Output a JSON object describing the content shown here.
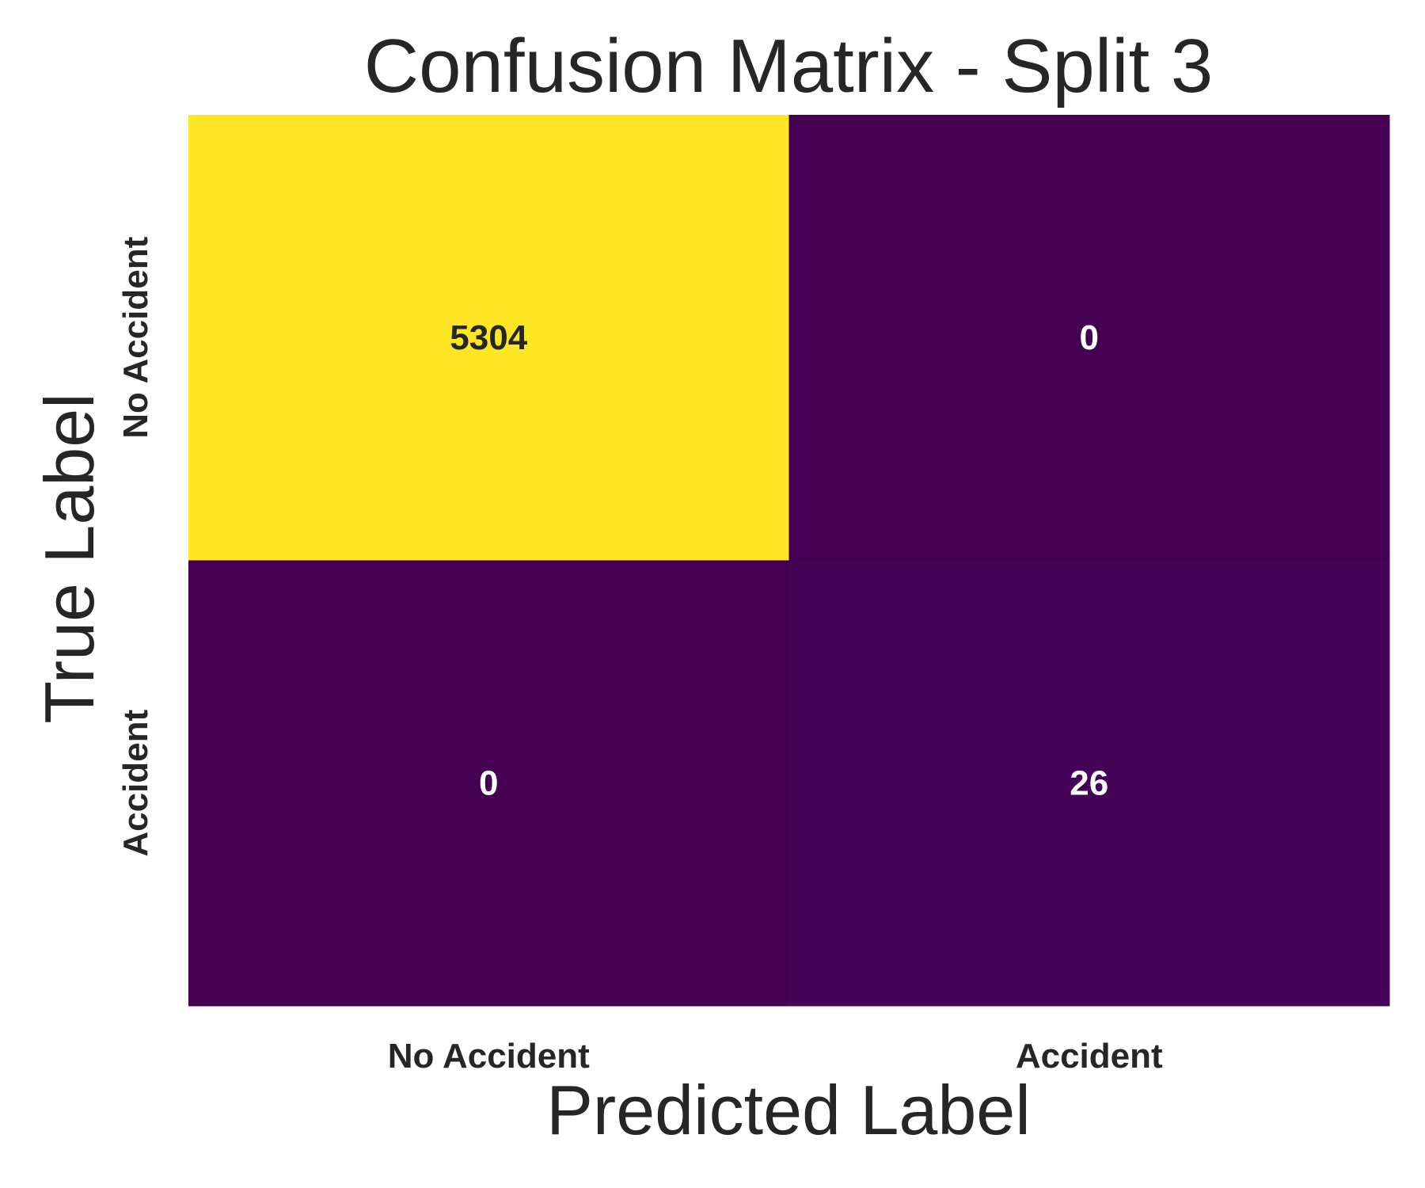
{
  "chart_data": {
    "type": "heatmap",
    "title": "Confusion Matrix - Split 3",
    "xlabel": "Predicted Label",
    "ylabel": "True Label",
    "x_categories": [
      "No Accident",
      "Accident"
    ],
    "y_categories": [
      "No Accident",
      "Accident"
    ],
    "matrix": [
      [
        5304,
        0
      ],
      [
        0,
        26
      ]
    ],
    "colormap": "viridis",
    "colors": {
      "low": "#440154",
      "high": "#fde725",
      "text_on_light": "#262626",
      "text_on_dark": "#ffffff"
    },
    "grid": false,
    "colorbar": false
  }
}
